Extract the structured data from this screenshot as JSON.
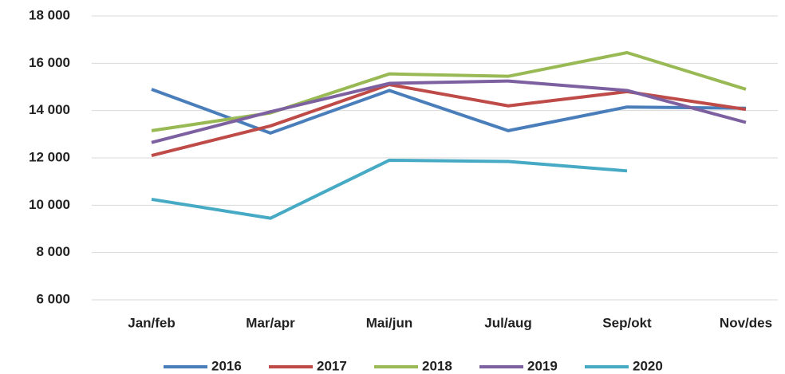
{
  "chart_data": {
    "type": "line",
    "categories": [
      "Jan/feb",
      "Mar/apr",
      "Mai/jun",
      "Jul/aug",
      "Sep/okt",
      "Nov/des"
    ],
    "series": [
      {
        "name": "2016",
        "color": "#4a7ebb",
        "values": [
          14900,
          13050,
          14850,
          13150,
          14150,
          14100
        ]
      },
      {
        "name": "2017",
        "color": "#be4b48",
        "values": [
          12100,
          13350,
          15100,
          14200,
          14800,
          14050
        ]
      },
      {
        "name": "2018",
        "color": "#98b954",
        "values": [
          13150,
          13900,
          15550,
          15450,
          16450,
          14900
        ]
      },
      {
        "name": "2019",
        "color": "#7d60a0",
        "values": [
          12650,
          13950,
          15150,
          15250,
          14850,
          13500
        ]
      },
      {
        "name": "2020",
        "color": "#46aac5",
        "values": [
          10250,
          9450,
          11900,
          11850,
          11450,
          null
        ]
      }
    ],
    "ylim": [
      6000,
      18000
    ],
    "yticks": [
      {
        "value": 6000,
        "label": "6 000"
      },
      {
        "value": 8000,
        "label": "8 000"
      },
      {
        "value": 10000,
        "label": "10 000"
      },
      {
        "value": 12000,
        "label": "12 000"
      },
      {
        "value": 14000,
        "label": "14 000"
      },
      {
        "value": 16000,
        "label": "16 000"
      },
      {
        "value": 18000,
        "label": "18 000"
      }
    ],
    "grid": true,
    "legend": "bottom"
  }
}
